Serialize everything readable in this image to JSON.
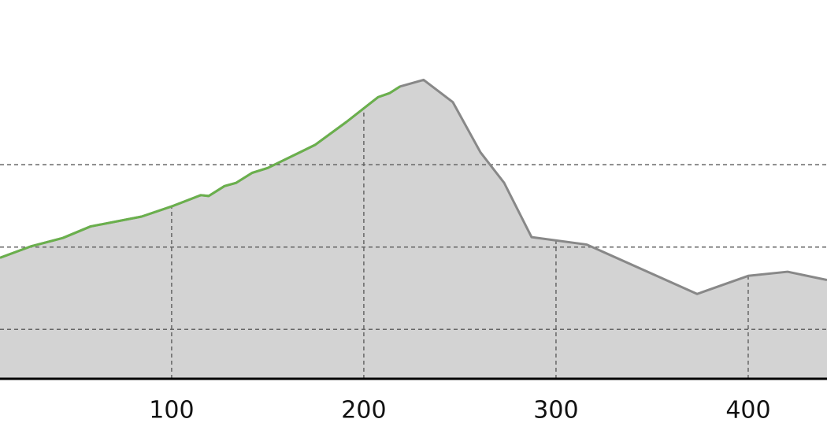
{
  "chart_data": {
    "type": "area",
    "x": [
      10.7,
      27,
      43.4,
      57.8,
      84.4,
      100.8,
      115.2,
      119.3,
      127.5,
      133.6,
      141.8,
      150,
      174.6,
      191,
      207.4,
      213.5,
      218.9,
      231.1,
      246.3,
      260.7,
      273,
      287.3,
      316,
      373.4,
      400,
      420.5,
      441
    ],
    "series": [
      {
        "color": "#888888",
        "fill": "#d3d3d3",
        "values": [
          187,
          201,
          211,
          225,
          237,
          250,
          263,
          262,
          274,
          278,
          290,
          296,
          324,
          352,
          382,
          387,
          395,
          403,
          376,
          315,
          278,
          212,
          203,
          143,
          165,
          170,
          160
        ]
      },
      {
        "color": "#6ab04c",
        "values": [
          187,
          201,
          211,
          225,
          237,
          250,
          263,
          262,
          274,
          278,
          290,
          296,
          324,
          352,
          382,
          387,
          395,
          null,
          null,
          null,
          null,
          null,
          null,
          null,
          null,
          null,
          null
        ]
      }
    ],
    "xlim": [
      10.7,
      441
    ],
    "xticks": [
      100,
      200,
      300,
      400
    ],
    "ylim": [
      40,
      500
    ],
    "yticks": [
      100,
      200,
      300
    ],
    "grid": true
  }
}
